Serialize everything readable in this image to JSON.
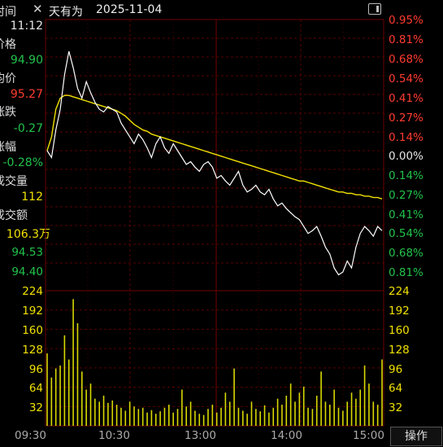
{
  "header": {
    "stock_name": "天有为",
    "date": "2025-11-04",
    "close_glyph": "✕"
  },
  "info_panel": {
    "time_label": "时间",
    "time_value": "11:12",
    "price_label": "价格",
    "price_value": "94.90",
    "avg_label": "均价",
    "avg_value": "95.27",
    "change_label": "涨跌",
    "change_value": "-0.27",
    "pct_label": "涨幅",
    "pct_value": "-0.28%",
    "vol_label": "成交量",
    "vol_value": "112",
    "amount_label": "成交额",
    "amount_value": "106.3万"
  },
  "left_axis": {
    "lower_prices": [
      "94.53",
      "94.40"
    ],
    "volume_ticks": [
      "224",
      "192",
      "160",
      "128",
      "96",
      "64",
      "32"
    ]
  },
  "right_axis": {
    "pct_ticks": [
      "0.95%",
      "0.81%",
      "0.68%",
      "0.54%",
      "0.41%",
      "0.27%",
      "0.14%",
      "0.00%",
      "0.14%",
      "0.27%",
      "0.41%",
      "0.54%",
      "0.68%",
      "0.81%"
    ],
    "pct_colors": [
      "red",
      "red",
      "red",
      "red",
      "red",
      "red",
      "red",
      "white",
      "green",
      "green",
      "green",
      "green",
      "green",
      "green"
    ],
    "volume_ticks": [
      "224",
      "192",
      "160",
      "128",
      "96",
      "64",
      "32"
    ]
  },
  "time_axis": [
    "09:30",
    "10:30",
    "13:00",
    "14:00",
    "15:00"
  ],
  "operate_button": "操作",
  "colors": {
    "price_line": "#ffffff",
    "avg_line": "#f0e000",
    "volume_bar": "#d8d800",
    "grid": "#5a0000",
    "up": "#ff3b30",
    "down": "#22c24a"
  },
  "chart_data": {
    "type": "line",
    "ylim_percent": [
      -0.95,
      0.95
    ],
    "price_pct": [
      0,
      -0.05,
      0.15,
      0.3,
      0.55,
      0.72,
      0.6,
      0.45,
      0.38,
      0.5,
      0.42,
      0.35,
      0.3,
      0.28,
      0.32,
      0.3,
      0.28,
      0.2,
      0.15,
      0.1,
      0.05,
      0.12,
      0.08,
      0.02,
      -0.05,
      0.05,
      0.1,
      0.02,
      -0.02,
      0.05,
      0.0,
      -0.05,
      -0.1,
      -0.08,
      -0.12,
      -0.15,
      -0.1,
      -0.08,
      -0.12,
      -0.2,
      -0.18,
      -0.22,
      -0.25,
      -0.2,
      -0.15,
      -0.25,
      -0.3,
      -0.28,
      -0.25,
      -0.3,
      -0.32,
      -0.28,
      -0.35,
      -0.4,
      -0.38,
      -0.42,
      -0.45,
      -0.48,
      -0.5,
      -0.55,
      -0.6,
      -0.58,
      -0.55,
      -0.62,
      -0.7,
      -0.75,
      -0.85,
      -0.9,
      -0.88,
      -0.8,
      -0.85,
      -0.7,
      -0.6,
      -0.55,
      -0.58,
      -0.62,
      -0.55,
      -0.58
    ],
    "avg_pct": [
      0,
      0.1,
      0.3,
      0.38,
      0.4,
      0.4,
      0.39,
      0.38,
      0.37,
      0.36,
      0.35,
      0.34,
      0.33,
      0.32,
      0.31,
      0.3,
      0.29,
      0.27,
      0.25,
      0.22,
      0.19,
      0.17,
      0.15,
      0.14,
      0.12,
      0.11,
      0.1,
      0.09,
      0.08,
      0.07,
      0.06,
      0.05,
      0.04,
      0.03,
      0.02,
      0.01,
      0.0,
      -0.01,
      -0.02,
      -0.03,
      -0.04,
      -0.05,
      -0.06,
      -0.07,
      -0.08,
      -0.09,
      -0.1,
      -0.11,
      -0.12,
      -0.13,
      -0.14,
      -0.15,
      -0.16,
      -0.17,
      -0.18,
      -0.19,
      -0.2,
      -0.21,
      -0.22,
      -0.22,
      -0.23,
      -0.24,
      -0.25,
      -0.26,
      -0.27,
      -0.28,
      -0.29,
      -0.3,
      -0.3,
      -0.31,
      -0.31,
      -0.32,
      -0.32,
      -0.33,
      -0.33,
      -0.34,
      -0.34,
      -0.35
    ],
    "volume": [
      120,
      80,
      95,
      100,
      150,
      110,
      210,
      170,
      90,
      60,
      70,
      45,
      40,
      50,
      38,
      42,
      35,
      30,
      25,
      40,
      32,
      28,
      30,
      22,
      26,
      20,
      24,
      30,
      35,
      22,
      28,
      60,
      32,
      40,
      25,
      20,
      18,
      28,
      35,
      22,
      30,
      55,
      40,
      95,
      30,
      25,
      20,
      40,
      28,
      24,
      34,
      22,
      30,
      45,
      35,
      50,
      70,
      40,
      55,
      65,
      30,
      28,
      50,
      90,
      40,
      35,
      60,
      30,
      25,
      40,
      55,
      45,
      60,
      100,
      70,
      40,
      35,
      110
    ],
    "volume_ylim": [
      0,
      224
    ]
  }
}
